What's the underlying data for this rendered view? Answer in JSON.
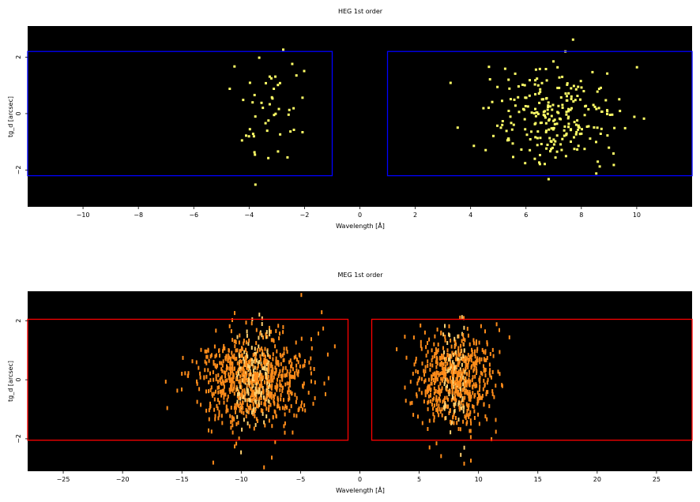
{
  "colors": {
    "background": "#000000",
    "heg_box": "#0000ff",
    "meg_box": "#ff0000",
    "heg_points": "#ffff66",
    "meg_points": "#ff8c1a",
    "meg_points_hot": "#ffd070"
  },
  "chart_data": [
    {
      "type": "scatter",
      "title": "HEG 1st order",
      "xlabel": "Wavelength [Å]",
      "ylabel": "tg_d [arcsec]",
      "xlim": [
        -12,
        12
      ],
      "ylim": [
        -3.3,
        3.1
      ],
      "xticks": [
        -10,
        -8,
        -6,
        -4,
        -2,
        0,
        2,
        4,
        6,
        8,
        10
      ],
      "yticks": [
        -2,
        0,
        2
      ],
      "grid": false,
      "regions": [
        {
          "x": [
            -12,
            -1
          ],
          "y": [
            -2.2,
            2.2
          ]
        },
        {
          "x": [
            1,
            12
          ],
          "y": [
            -2.2,
            2.2
          ]
        }
      ],
      "clusters": [
        {
          "x_center": -3.4,
          "x_spread": 1.2,
          "y_spread": 0.9,
          "count": 50
        },
        {
          "x_center": 7.0,
          "x_spread": 2.1,
          "y_spread": 0.85,
          "count": 260
        }
      ]
    },
    {
      "type": "scatter",
      "title": "MEG 1st order",
      "xlabel": "Wavelength [Å]",
      "ylabel": "tg_d [arcsec]",
      "xlim": [
        -28,
        28
      ],
      "ylim": [
        -3.1,
        3.0
      ],
      "xticks": [
        -25,
        -20,
        -15,
        -10,
        -5,
        0,
        5,
        10,
        15,
        20,
        25
      ],
      "yticks": [
        -2,
        0,
        2
      ],
      "grid": false,
      "regions": [
        {
          "x": [
            -28,
            -1
          ],
          "y": [
            -2.05,
            2.05
          ]
        },
        {
          "x": [
            1,
            28
          ],
          "y": [
            -2.05,
            2.05
          ]
        }
      ],
      "clusters": [
        {
          "x_center": -9.0,
          "x_spread": 4.0,
          "y_spread": 0.75,
          "count": 900
        },
        {
          "x_center": 8.0,
          "x_spread": 2.8,
          "y_spread": 0.75,
          "count": 700
        }
      ]
    }
  ]
}
